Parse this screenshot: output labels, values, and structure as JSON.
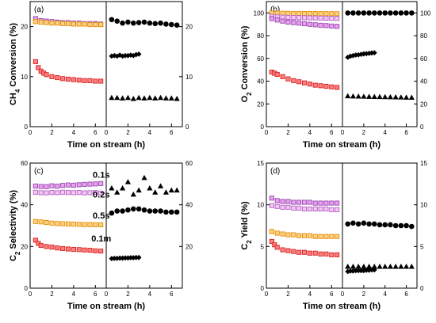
{
  "chart_data": [
    {
      "panel": "(a)",
      "type": "scatter",
      "title": "",
      "xlabel": "Time on stream (h)",
      "ylabel": "CH4 Conversion (%)",
      "ylabel_main": "CH",
      "ylabel_sub": "4",
      "ylabel_rest": " Conversion (%)",
      "xlim": [
        0,
        7
      ],
      "ylim": [
        0,
        25
      ],
      "xticks": [
        "0",
        "2",
        "4",
        "6"
      ],
      "yticks_left": [
        "0",
        "10",
        "20"
      ],
      "yticks_right": [
        "0",
        "10",
        "20"
      ],
      "annotations": [],
      "left_series": [
        {
          "style": "sq_purple",
          "x": [
            0.5,
            1,
            1.5,
            2,
            2.5,
            3,
            3.5,
            4,
            4.5,
            5,
            5.5,
            6,
            6.5
          ],
          "y": [
            21.6,
            21.2,
            21.1,
            21,
            20.9,
            20.8,
            20.8,
            20.7,
            20.7,
            20.6,
            20.6,
            20.6,
            20.5
          ]
        },
        {
          "style": "sq_orange",
          "x": [
            0.5,
            1,
            1.5,
            2,
            2.5,
            3,
            3.5,
            4,
            4.5,
            5,
            5.5,
            6,
            6.5
          ],
          "y": [
            21.0,
            20.9,
            20.8,
            20.7,
            20.7,
            20.6,
            20.6,
            20.5,
            20.5,
            20.5,
            20.4,
            20.4,
            20.4
          ]
        },
        {
          "style": "sq_red",
          "x": [
            0.5,
            0.75,
            1,
            1.25,
            1.5,
            2,
            2.5,
            3,
            3.5,
            4,
            4.5,
            5,
            5.5,
            6,
            6.5
          ],
          "y": [
            13,
            11.8,
            11.1,
            10.7,
            10.4,
            10.0,
            9.8,
            9.6,
            9.5,
            9.4,
            9.3,
            9.2,
            9.2,
            9.1,
            9.1
          ]
        }
      ],
      "right_series": [
        {
          "style": "circle",
          "x": [
            0.5,
            1,
            1.5,
            2,
            2.5,
            3,
            3.5,
            4,
            4.5,
            5,
            5.5,
            6,
            6.5
          ],
          "y": [
            21.4,
            21.1,
            20.7,
            20.9,
            20.7,
            20.8,
            20.9,
            20.7,
            20.6,
            20.7,
            20.5,
            20.4,
            20.3
          ]
        },
        {
          "style": "diamond",
          "x": [
            0.5,
            0.75,
            1,
            1.25,
            1.5,
            1.75,
            2,
            2.25,
            2.5,
            2.75,
            3
          ],
          "y": [
            14.1,
            14.2,
            14.1,
            14.3,
            14.1,
            14.2,
            14.2,
            14.3,
            14.2,
            14.4,
            14.5
          ]
        },
        {
          "style": "triangle",
          "x": [
            0.5,
            1,
            1.5,
            2,
            2.5,
            3,
            3.5,
            4,
            4.5,
            5,
            5.5,
            6,
            6.5
          ],
          "y": [
            5.8,
            5.8,
            5.7,
            5.8,
            5.6,
            5.8,
            5.7,
            5.8,
            5.7,
            5.8,
            5.7,
            5.7,
            5.6
          ]
        }
      ]
    },
    {
      "panel": "(b)",
      "type": "scatter",
      "title": "",
      "xlabel": "Time on stream (h)",
      "ylabel": "O2 Conversion (%)",
      "ylabel_main": "O",
      "ylabel_sub": "2",
      "ylabel_rest": " Conversion (%)",
      "xlim": [
        0,
        7
      ],
      "ylim": [
        0,
        110
      ],
      "xticks": [
        "0",
        "2",
        "4",
        "6"
      ],
      "yticks_left": [
        "0",
        "20",
        "40",
        "60",
        "80",
        "100"
      ],
      "yticks_right": [
        "0",
        "20",
        "40",
        "60",
        "80",
        "100"
      ],
      "annotations": [],
      "left_series": [
        {
          "style": "sq_orange",
          "x": [
            0.5,
            1,
            1.5,
            2,
            2.5,
            3,
            3.5,
            4,
            4.5,
            5,
            5.5,
            6,
            6.5
          ],
          "y": [
            100,
            99.8,
            99.7,
            99.7,
            99.6,
            99.6,
            99.5,
            99.5,
            99.5,
            99.4,
            99.4,
            99.4,
            99.3
          ]
        },
        {
          "style": "sq_purple_light",
          "x": [
            0.5,
            1,
            1.5,
            2,
            2.5,
            3,
            3.5,
            4,
            4.5,
            5,
            5.5,
            6,
            6.5
          ],
          "y": [
            97,
            96.6,
            96.3,
            96.1,
            96,
            95.9,
            95.8,
            95.7,
            95.6,
            95.5,
            95.4,
            95.3,
            95.2
          ]
        },
        {
          "style": "sq_purple",
          "x": [
            0.5,
            1,
            1.5,
            2,
            2.5,
            3,
            3.5,
            4,
            4.5,
            5,
            5.5,
            6,
            6.5
          ],
          "y": [
            95,
            93.8,
            92.8,
            92,
            91.5,
            91,
            90.5,
            90,
            89.6,
            89.2,
            88.9,
            88.5,
            88.2
          ]
        },
        {
          "style": "sq_red",
          "x": [
            0.5,
            0.75,
            1,
            1.5,
            2,
            2.5,
            3,
            3.5,
            4,
            4.5,
            5,
            5.5,
            6,
            6.5
          ],
          "y": [
            48,
            47,
            46,
            44,
            42,
            40.5,
            39.5,
            38.5,
            37.5,
            36.5,
            36,
            35.5,
            35,
            34.5
          ]
        }
      ],
      "right_series": [
        {
          "style": "circle",
          "x": [
            0.5,
            1,
            1.5,
            2,
            2.5,
            3,
            3.5,
            4,
            4.5,
            5,
            5.5,
            6,
            6.5
          ],
          "y": [
            100,
            100,
            100,
            100,
            100,
            100,
            100,
            100,
            100,
            100,
            100,
            100,
            100
          ]
        },
        {
          "style": "diamond",
          "x": [
            0.5,
            0.75,
            1,
            1.25,
            1.5,
            1.75,
            2,
            2.25,
            2.5,
            2.75,
            3
          ],
          "y": [
            61,
            62,
            62.5,
            63,
            63.2,
            63.6,
            64,
            64.2,
            64.5,
            64.8,
            65
          ]
        },
        {
          "style": "triangle",
          "x": [
            0.5,
            1,
            1.5,
            2,
            2.5,
            3,
            3.5,
            4,
            4.5,
            5,
            5.5,
            6,
            6.5
          ],
          "y": [
            27,
            26.8,
            26.7,
            26.6,
            26.5,
            26.4,
            26.3,
            26.2,
            26.1,
            26,
            25.9,
            25.8,
            25.7
          ]
        }
      ]
    },
    {
      "panel": "(c)",
      "type": "scatter",
      "title": "",
      "xlabel": "Time on stream (h)",
      "ylabel": "C2 Selectivity (%)",
      "ylabel_main": "C",
      "ylabel_sub": "2",
      "ylabel_rest": " Selectivity (%)",
      "xlim": [
        0,
        7
      ],
      "ylim": [
        0,
        60
      ],
      "xticks": [
        "0",
        "2",
        "4",
        "6"
      ],
      "yticks_left": [
        "0",
        "20",
        "40",
        "60"
      ],
      "yticks_right": [
        "20",
        "40",
        "60"
      ],
      "annotations": [
        {
          "text": "0.1s",
          "x": 6.4,
          "y": 53
        },
        {
          "text": "0.2s",
          "x": 6.4,
          "y": 43.5
        },
        {
          "text": "0.5s",
          "x": 6.4,
          "y": 33.5
        },
        {
          "text": "0.1m",
          "x": 6.4,
          "y": 22.5
        }
      ],
      "left_series": [
        {
          "style": "sq_purple",
          "x": [
            0.5,
            1,
            1.5,
            2,
            2.5,
            3,
            3.5,
            4,
            4.5,
            5,
            5.5,
            6,
            6.5
          ],
          "y": [
            49,
            48.8,
            48.7,
            49.1,
            48.9,
            49.3,
            49.5,
            49.4,
            49.6,
            49.8,
            49.9,
            50,
            50.2
          ]
        },
        {
          "style": "sq_purple_light",
          "x": [
            0.5,
            1,
            1.5,
            2,
            2.5,
            3,
            3.5,
            4,
            4.5,
            5,
            5.5,
            6,
            6.5
          ],
          "y": [
            46,
            45.8,
            45.7,
            45.9,
            45.8,
            46,
            45.9,
            45.8,
            45.9,
            45.7,
            45.8,
            45.9,
            45.6
          ]
        },
        {
          "style": "sq_orange",
          "x": [
            0.5,
            1,
            1.5,
            2,
            2.5,
            3,
            3.5,
            4,
            4.5,
            5,
            5.5,
            6,
            6.5
          ],
          "y": [
            32,
            31.8,
            31.5,
            31.2,
            31,
            30.9,
            30.8,
            30.7,
            30.6,
            30.5,
            30.5,
            30.4,
            30.4
          ]
        },
        {
          "style": "sq_red",
          "x": [
            0.5,
            0.75,
            1,
            1.5,
            2,
            2.5,
            3,
            3.5,
            4,
            4.5,
            5,
            5.5,
            6,
            6.5
          ],
          "y": [
            23,
            21.5,
            20.5,
            20,
            19.7,
            19.3,
            19,
            18.8,
            18.6,
            18.5,
            18.3,
            18.2,
            17.9,
            17.8
          ]
        }
      ],
      "right_series": [
        {
          "style": "triangle",
          "x": [
            0.5,
            1,
            1.5,
            2,
            2.5,
            3,
            3.5,
            4,
            4.5,
            5,
            5.5,
            6,
            6.5
          ],
          "y": [
            48,
            46,
            48,
            51,
            45,
            47,
            53,
            48,
            46,
            49,
            46,
            47,
            47
          ]
        },
        {
          "style": "circle",
          "x": [
            0.5,
            1,
            1.5,
            2,
            2.5,
            3,
            3.5,
            4,
            4.5,
            5,
            5.5,
            6,
            6.5
          ],
          "y": [
            36,
            37,
            37,
            37.5,
            38,
            38,
            37.5,
            37,
            37,
            37,
            36.5,
            36.5,
            36.5
          ]
        },
        {
          "style": "diamond",
          "x": [
            0.5,
            0.75,
            1,
            1.25,
            1.5,
            1.75,
            2,
            2.25,
            2.5,
            2.75,
            3
          ],
          "y": [
            14.2,
            14.3,
            14.3,
            14.4,
            14.4,
            14.5,
            14.5,
            14.6,
            14.6,
            14.7,
            14.7
          ]
        }
      ]
    },
    {
      "panel": "(d)",
      "type": "scatter",
      "title": "",
      "xlabel": "Time on stream (h)",
      "ylabel": "C2 Yield (%)",
      "ylabel_main": "C",
      "ylabel_sub": "2",
      "ylabel_rest": " Yield (%)",
      "xlim": [
        0,
        7
      ],
      "ylim": [
        0,
        15
      ],
      "xticks": [
        "0",
        "2",
        "4",
        "6"
      ],
      "yticks_left": [
        "0",
        "5",
        "10",
        "15"
      ],
      "yticks_right": [
        "0",
        "5",
        "10",
        "15"
      ],
      "annotations": [],
      "left_series": [
        {
          "style": "sq_purple",
          "x": [
            0.5,
            1,
            1.5,
            2,
            2.5,
            3,
            3.5,
            4,
            4.5,
            5,
            5.5,
            6,
            6.5
          ],
          "y": [
            10.8,
            10.5,
            10.4,
            10.4,
            10.3,
            10.3,
            10.3,
            10.3,
            10.2,
            10.2,
            10.2,
            10.2,
            10.2
          ]
        },
        {
          "style": "sq_purple_light",
          "x": [
            0.5,
            1,
            1.5,
            2,
            2.5,
            3,
            3.5,
            4,
            4.5,
            5,
            5.5,
            6,
            6.5
          ],
          "y": [
            9.9,
            9.8,
            9.7,
            9.7,
            9.6,
            9.6,
            9.5,
            9.5,
            9.5,
            9.5,
            9.5,
            9.4,
            9.4
          ]
        },
        {
          "style": "sq_orange",
          "x": [
            0.5,
            1,
            1.5,
            2,
            2.5,
            3,
            3.5,
            4,
            4.5,
            5,
            5.5,
            6,
            6.5
          ],
          "y": [
            6.8,
            6.6,
            6.5,
            6.4,
            6.4,
            6.3,
            6.3,
            6.3,
            6.2,
            6.2,
            6.2,
            6.2,
            6.2
          ]
        },
        {
          "style": "sq_red",
          "x": [
            0.5,
            0.75,
            1,
            1.5,
            2,
            2.5,
            3,
            3.5,
            4,
            4.5,
            5,
            5.5,
            6,
            6.5
          ],
          "y": [
            5.6,
            5.2,
            4.9,
            4.6,
            4.5,
            4.4,
            4.3,
            4.3,
            4.2,
            4.2,
            4.1,
            4.1,
            4.0,
            4.0
          ]
        }
      ],
      "right_series": [
        {
          "style": "circle",
          "x": [
            0.5,
            1,
            1.5,
            2,
            2.5,
            3,
            3.5,
            4,
            4.5,
            5,
            5.5,
            6,
            6.5
          ],
          "y": [
            7.7,
            7.8,
            7.7,
            7.8,
            7.7,
            7.7,
            7.6,
            7.6,
            7.6,
            7.5,
            7.5,
            7.5,
            7.4
          ]
        },
        {
          "style": "triangle",
          "x": [
            0.5,
            1,
            1.5,
            2,
            2.5,
            3,
            3.5,
            4,
            4.5,
            5,
            5.5,
            6,
            6.5
          ],
          "y": [
            2.6,
            2.6,
            2.6,
            2.6,
            2.6,
            2.6,
            2.6,
            2.6,
            2.6,
            2.6,
            2.6,
            2.6,
            2.6
          ]
        },
        {
          "style": "diamond",
          "x": [
            0.5,
            0.75,
            1,
            1.25,
            1.5,
            1.75,
            2,
            2.25,
            2.5,
            2.75,
            3
          ],
          "y": [
            2,
            2.05,
            2.05,
            2.1,
            2.1,
            2.1,
            2.1,
            2.15,
            2.15,
            2.2,
            2.2
          ]
        }
      ]
    }
  ],
  "marker_colors": {
    "sq_purple": {
      "fill": "#f0a0f0",
      "stroke": "#8e44ad"
    },
    "sq_purple_light": {
      "fill": "#f7c6f7",
      "stroke": "#b061c0"
    },
    "sq_orange": {
      "fill": "#ffd27f",
      "stroke": "#e08a00"
    },
    "sq_red": {
      "fill": "#ff7f7f",
      "stroke": "#d42020"
    },
    "black": "#000000"
  }
}
